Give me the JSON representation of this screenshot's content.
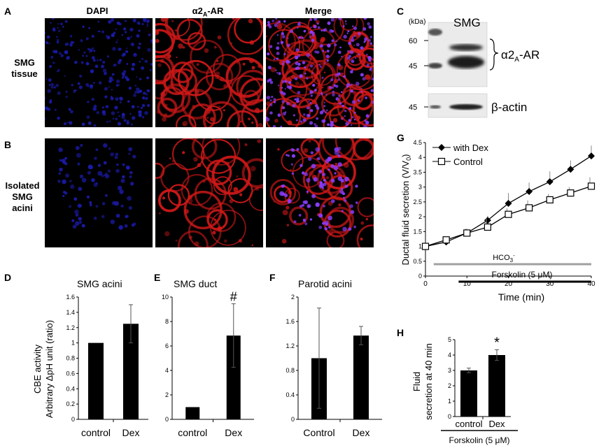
{
  "panels": {
    "A": "A",
    "B": "B",
    "C": "C",
    "D": "D",
    "E": "E",
    "F": "F",
    "G": "G",
    "H": "H"
  },
  "micrographs": {
    "col_labels": [
      "DAPI",
      "α2A-AR",
      "Merge"
    ],
    "col_label_main": "α2",
    "col_label_sub": "A",
    "col_label_tail": "-AR",
    "row_A": [
      "SMG",
      "tissue"
    ],
    "row_B": [
      "Isolated",
      "SMG",
      "acini"
    ]
  },
  "blot": {
    "unit": "(kDa)",
    "lane": "SMG",
    "markers_top": [
      "60",
      "45"
    ],
    "marker_bottom": "45",
    "band_label_main": "α2",
    "band_label_sub": "A",
    "band_label_tail": "-AR",
    "actin_label": "β-actin"
  },
  "panel_D": {
    "title": "SMG acini",
    "ylabel_1": "CBE activity",
    "ylabel_2": "Arbitrary ΔpH unit (ratio)",
    "chart_data": {
      "type": "bar",
      "categories": [
        "control",
        "Dex"
      ],
      "values": [
        1.0,
        1.25
      ],
      "errors": [
        0,
        0.25
      ],
      "ylim": [
        0,
        1.6
      ],
      "yticks": [
        "0",
        "0.2",
        "0.4",
        "0.6",
        "0.8",
        "1",
        "1.2",
        "1.4",
        "1.6"
      ]
    }
  },
  "panel_E": {
    "title": "SMG duct",
    "marker": "#",
    "chart_data": {
      "type": "bar",
      "categories": [
        "control",
        "Dex"
      ],
      "values": [
        1.0,
        6.85
      ],
      "errors": [
        0,
        2.6
      ],
      "ylim": [
        0,
        10
      ],
      "yticks": [
        "0",
        "2",
        "4",
        "6",
        "8",
        "10"
      ]
    }
  },
  "panel_F": {
    "title": "Parotid acini",
    "chart_data": {
      "type": "bar",
      "categories": [
        "Control",
        "Dex"
      ],
      "values": [
        1.0,
        1.37
      ],
      "errors": [
        0.82,
        0.15
      ],
      "ylim": [
        0,
        2
      ],
      "yticks": [
        "0",
        "0.4",
        "0.8",
        "1.2",
        "1.6",
        "2"
      ]
    }
  },
  "panel_G": {
    "ylabel": "Ductal fluid secretion (V/V",
    "ylabel_sub": "0",
    "ylabel_tail": ")",
    "xlabel": "Time (min)",
    "hco3_label": "HCO",
    "hco3_sub": "3",
    "hco3_sup": "-",
    "forskolin_label": "Forskolin (5 μM)",
    "legend": [
      "with Dex",
      "Control"
    ],
    "chart_data": {
      "type": "line",
      "x": [
        0,
        5,
        10,
        15,
        20,
        25,
        30,
        35,
        40
      ],
      "series": [
        {
          "name": "with Dex",
          "values": [
            1.0,
            1.15,
            1.45,
            1.88,
            2.45,
            2.85,
            3.18,
            3.6,
            4.05
          ],
          "errors": [
            0.1,
            0.1,
            0.15,
            0.15,
            0.35,
            0.3,
            0.35,
            0.3,
            0.35
          ]
        },
        {
          "name": "Control",
          "values": [
            1.0,
            1.22,
            1.45,
            1.65,
            2.08,
            2.3,
            2.57,
            2.8,
            3.03
          ],
          "errors": [
            0.05,
            0.1,
            0.15,
            0.3,
            0.2,
            0.25,
            0.2,
            0.2,
            0.3
          ]
        }
      ],
      "xlim": [
        0,
        40
      ],
      "ylim": [
        0,
        4.5
      ],
      "xticks": [
        "0",
        "10",
        "20",
        "30",
        "40"
      ],
      "yticks": [
        "0",
        "0.5",
        "1",
        "1.5",
        "2",
        "2.5",
        "3",
        "3.5",
        "4",
        "4.5"
      ]
    }
  },
  "panel_H": {
    "ylabel_1": "Fluid",
    "ylabel_2": "secretion at 40 min",
    "marker": "*",
    "footer": "Forskolin (5 μM)",
    "chart_data": {
      "type": "bar",
      "categories": [
        "control",
        "Dex"
      ],
      "values": [
        3.0,
        4.0
      ],
      "errors": [
        0.15,
        0.35
      ],
      "ylim": [
        0,
        5
      ],
      "yticks": [
        "0",
        "1",
        "2",
        "3",
        "4",
        "5"
      ]
    }
  },
  "colors": {
    "dapi": "#1a1aa8",
    "ar": "#d01818",
    "bar": "#000000",
    "grey_bar": "#a0a0a0"
  }
}
